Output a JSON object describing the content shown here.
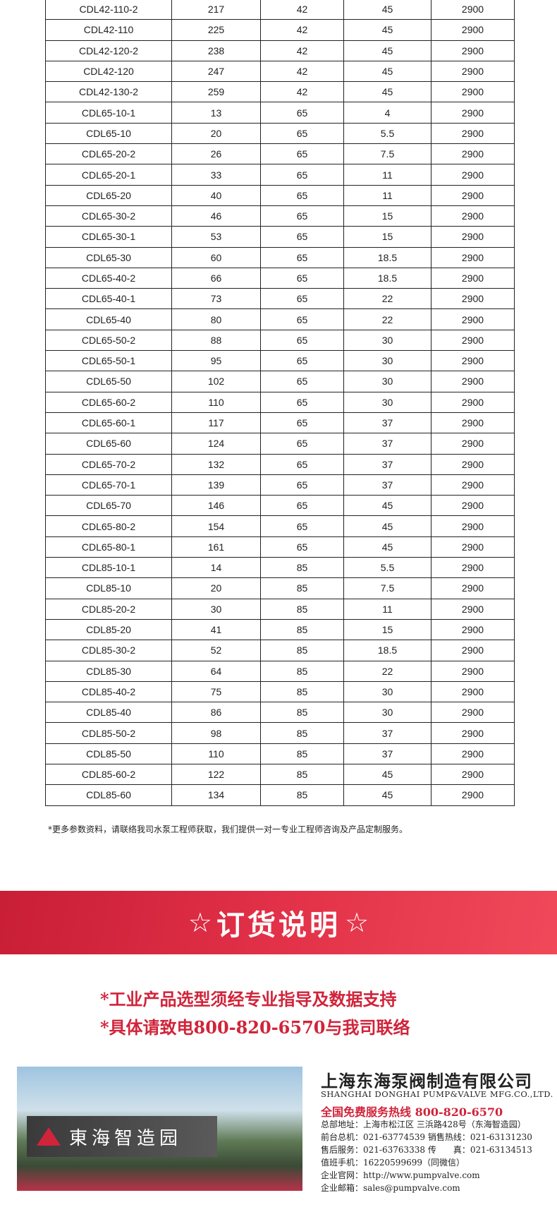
{
  "table": {
    "rows": [
      [
        "CDL42-110-2",
        "217",
        "42",
        "45",
        "2900"
      ],
      [
        "CDL42-110",
        "225",
        "42",
        "45",
        "2900"
      ],
      [
        "CDL42-120-2",
        "238",
        "42",
        "45",
        "2900"
      ],
      [
        "CDL42-120",
        "247",
        "42",
        "45",
        "2900"
      ],
      [
        "CDL42-130-2",
        "259",
        "42",
        "45",
        "2900"
      ],
      [
        "CDL65-10-1",
        "13",
        "65",
        "4",
        "2900"
      ],
      [
        "CDL65-10",
        "20",
        "65",
        "5.5",
        "2900"
      ],
      [
        "CDL65-20-2",
        "26",
        "65",
        "7.5",
        "2900"
      ],
      [
        "CDL65-20-1",
        "33",
        "65",
        "11",
        "2900"
      ],
      [
        "CDL65-20",
        "40",
        "65",
        "11",
        "2900"
      ],
      [
        "CDL65-30-2",
        "46",
        "65",
        "15",
        "2900"
      ],
      [
        "CDL65-30-1",
        "53",
        "65",
        "15",
        "2900"
      ],
      [
        "CDL65-30",
        "60",
        "65",
        "18.5",
        "2900"
      ],
      [
        "CDL65-40-2",
        "66",
        "65",
        "18.5",
        "2900"
      ],
      [
        "CDL65-40-1",
        "73",
        "65",
        "22",
        "2900"
      ],
      [
        "CDL65-40",
        "80",
        "65",
        "22",
        "2900"
      ],
      [
        "CDL65-50-2",
        "88",
        "65",
        "30",
        "2900"
      ],
      [
        "CDL65-50-1",
        "95",
        "65",
        "30",
        "2900"
      ],
      [
        "CDL65-50",
        "102",
        "65",
        "30",
        "2900"
      ],
      [
        "CDL65-60-2",
        "110",
        "65",
        "30",
        "2900"
      ],
      [
        "CDL65-60-1",
        "117",
        "65",
        "37",
        "2900"
      ],
      [
        "CDL65-60",
        "124",
        "65",
        "37",
        "2900"
      ],
      [
        "CDL65-70-2",
        "132",
        "65",
        "37",
        "2900"
      ],
      [
        "CDL65-70-1",
        "139",
        "65",
        "37",
        "2900"
      ],
      [
        "CDL65-70",
        "146",
        "65",
        "45",
        "2900"
      ],
      [
        "CDL65-80-2",
        "154",
        "65",
        "45",
        "2900"
      ],
      [
        "CDL65-80-1",
        "161",
        "65",
        "45",
        "2900"
      ],
      [
        "CDL85-10-1",
        "14",
        "85",
        "5.5",
        "2900"
      ],
      [
        "CDL85-10",
        "20",
        "85",
        "7.5",
        "2900"
      ],
      [
        "CDL85-20-2",
        "30",
        "85",
        "11",
        "2900"
      ],
      [
        "CDL85-20",
        "41",
        "85",
        "15",
        "2900"
      ],
      [
        "CDL85-30-2",
        "52",
        "85",
        "18.5",
        "2900"
      ],
      [
        "CDL85-30",
        "64",
        "85",
        "22",
        "2900"
      ],
      [
        "CDL85-40-2",
        "75",
        "85",
        "30",
        "2900"
      ],
      [
        "CDL85-40",
        "86",
        "85",
        "30",
        "2900"
      ],
      [
        "CDL85-50-2",
        "98",
        "85",
        "37",
        "2900"
      ],
      [
        "CDL85-50",
        "110",
        "85",
        "37",
        "2900"
      ],
      [
        "CDL85-60-2",
        "122",
        "85",
        "45",
        "2900"
      ],
      [
        "CDL85-60",
        "134",
        "85",
        "45",
        "2900"
      ]
    ]
  },
  "note": "*更多参数资料，请联络我司水泵工程师获取，我们提供一对一专业工程师咨询及产品定制服务。",
  "banner": {
    "title": "订货说明",
    "star": "☆"
  },
  "order": [
    "*工业产品选型须经专业指导及数据支持",
    "*具体请致电800-820-6570与我司联络"
  ],
  "photo": {
    "sign": "東海智造园"
  },
  "company": {
    "name": "上海东海泵阀制造有限公司",
    "name_en": "SHANGHAI DONGHAI PUMP&VALVE MFG.CO.,LTD.",
    "hotline": "全国免费服务热线  800-820-6570",
    "lines": [
      "总部地址：上海市松江区 三浜路428号（东海智造园）",
      "前台总机：021-63774539   销售热线：021-63131230",
      "售后服务：021-63763338   传　　真：021-63134513",
      "值班手机：16220599699（同微信）",
      "企业官网：http://www.pumpvalve.com",
      "企业邮箱：sales@pumpvalve.com"
    ]
  },
  "colors": {
    "accent": "#d0243a"
  }
}
